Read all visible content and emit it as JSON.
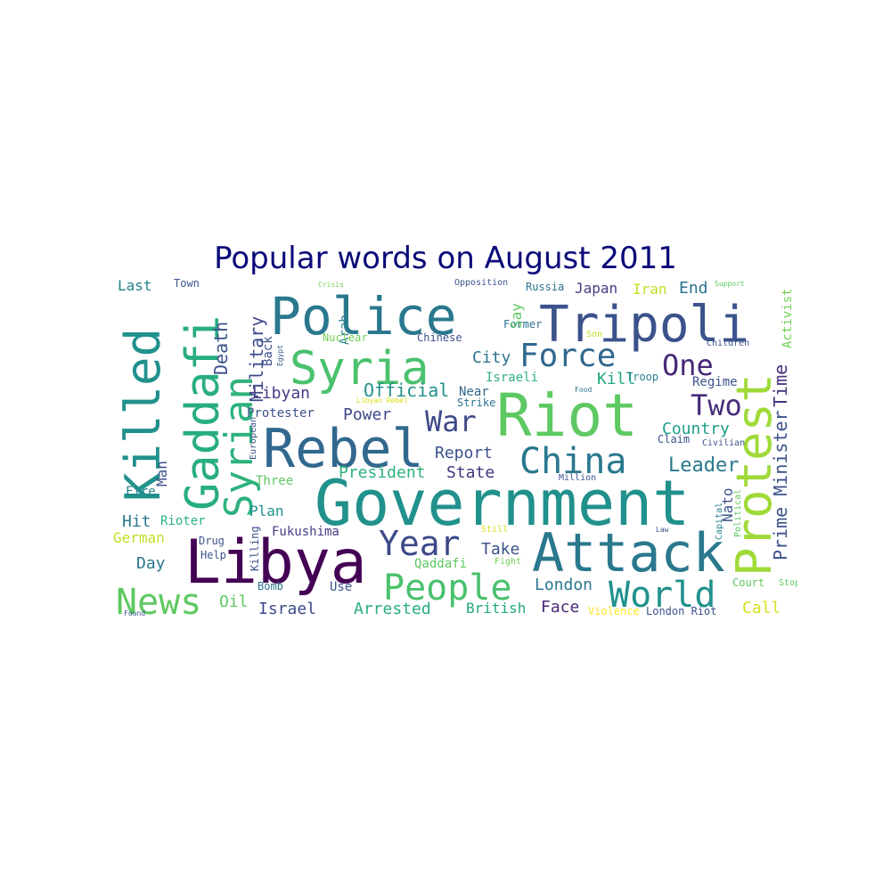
{
  "title": "Popular words on August 2011",
  "colors": {
    "title": "#0a0a7a"
  },
  "words": [
    {
      "text": "Government",
      "color": "#21918c"
    },
    {
      "text": "Libya",
      "color": "#440154"
    },
    {
      "text": "Attack",
      "color": "#2a788e"
    },
    {
      "text": "Riot",
      "color": "#5ec962"
    },
    {
      "text": "Police",
      "color": "#2a788e"
    },
    {
      "text": "Tripoli",
      "color": "#3b528b"
    },
    {
      "text": "Killed",
      "color": "#21918c"
    },
    {
      "text": "Gaddafi",
      "color": "#27ad81"
    },
    {
      "text": "Rebel",
      "color": "#31688e"
    },
    {
      "text": "Syria",
      "color": "#4ac16d"
    },
    {
      "text": "Protest",
      "color": "#a0da39"
    },
    {
      "text": "Syrian",
      "color": "#2db27d"
    },
    {
      "text": "News",
      "color": "#5ec962"
    },
    {
      "text": "People",
      "color": "#4ac16d"
    },
    {
      "text": "World",
      "color": "#21918c"
    },
    {
      "text": "China",
      "color": "#2a788e"
    },
    {
      "text": "Force",
      "color": "#31688e"
    },
    {
      "text": "Year",
      "color": "#3e4989"
    },
    {
      "text": "One",
      "color": "#482878"
    },
    {
      "text": "Two",
      "color": "#472d7b"
    },
    {
      "text": "War",
      "color": "#3e4989"
    },
    {
      "text": "Leader",
      "color": "#2a788e"
    },
    {
      "text": "Prime Minister",
      "color": "#3b528b"
    },
    {
      "text": "Time",
      "color": "#46327e"
    },
    {
      "text": "Death",
      "color": "#3b528b"
    },
    {
      "text": "Military",
      "color": "#3e4989"
    },
    {
      "text": "Official",
      "color": "#21918c"
    },
    {
      "text": "Libyan",
      "color": "#433e85"
    },
    {
      "text": "Country",
      "color": "#1f9e89"
    },
    {
      "text": "City",
      "color": "#2c728e"
    },
    {
      "text": "Kill",
      "color": "#22a884"
    },
    {
      "text": "Regime",
      "color": "#3b528b"
    },
    {
      "text": "End",
      "color": "#2c728e"
    },
    {
      "text": "Report",
      "color": "#3b528b"
    },
    {
      "text": "President",
      "color": "#2db27d"
    },
    {
      "text": "State",
      "color": "#46327e"
    },
    {
      "text": "Power",
      "color": "#3e4989"
    },
    {
      "text": "Protester",
      "color": "#3b528b"
    },
    {
      "text": "Near",
      "color": "#31688e"
    },
    {
      "text": "Israeli",
      "color": "#2db27d"
    },
    {
      "text": "Strike",
      "color": "#2c728e"
    },
    {
      "text": "Troop",
      "color": "#26828e"
    },
    {
      "text": "Arrested",
      "color": "#27ad81"
    },
    {
      "text": "British",
      "color": "#22a884"
    },
    {
      "text": "Face",
      "color": "#482878"
    },
    {
      "text": "Israel",
      "color": "#3e4989"
    },
    {
      "text": "London",
      "color": "#2a788e"
    },
    {
      "text": "Take",
      "color": "#3b528b"
    },
    {
      "text": "Qaddafi",
      "color": "#5ec962"
    },
    {
      "text": "Fukushima",
      "color": "#433e85"
    },
    {
      "text": "Plan",
      "color": "#21918c"
    },
    {
      "text": "Three",
      "color": "#5ec962"
    },
    {
      "text": "Hit",
      "color": "#2a788e"
    },
    {
      "text": "German",
      "color": "#c2df23"
    },
    {
      "text": "Day",
      "color": "#2a788e"
    },
    {
      "text": "Oil",
      "color": "#5ec962"
    },
    {
      "text": "Use",
      "color": "#3b528b"
    },
    {
      "text": "Call",
      "color": "#d8e219"
    },
    {
      "text": "Nato",
      "color": "#3b528b"
    },
    {
      "text": "Man",
      "color": "#3b528b"
    },
    {
      "text": "Fire",
      "color": "#26828e"
    },
    {
      "text": "Rioter",
      "color": "#2db27d"
    },
    {
      "text": "Drug",
      "color": "#3b528b"
    },
    {
      "text": "Help",
      "color": "#3b528b"
    },
    {
      "text": "Bomb",
      "color": "#2c728e"
    },
    {
      "text": "Killing",
      "color": "#3b528b"
    },
    {
      "text": "Last",
      "color": "#26828e"
    },
    {
      "text": "Town",
      "color": "#3b528b"
    },
    {
      "text": "Arab",
      "color": "#26828e"
    },
    {
      "text": "Back",
      "color": "#3b528b"
    },
    {
      "text": "Egypt",
      "color": "#3b528b"
    },
    {
      "text": "European",
      "color": "#3b528b"
    },
    {
      "text": "Nuclear",
      "color": "#73d056"
    },
    {
      "text": "Chinese",
      "color": "#3b528b"
    },
    {
      "text": "Opposition",
      "color": "#3b528b"
    },
    {
      "text": "Russia",
      "color": "#2c728e"
    },
    {
      "text": "Japan",
      "color": "#433e85"
    },
    {
      "text": "Iran",
      "color": "#c2df23"
    },
    {
      "text": "Former",
      "color": "#2c728e"
    },
    {
      "text": "Son",
      "color": "#c2df23"
    },
    {
      "text": "Children",
      "color": "#3b528b"
    },
    {
      "text": "Activist",
      "color": "#73d056"
    },
    {
      "text": "Support",
      "color": "#5ec962"
    },
    {
      "text": "Crisis",
      "color": "#73d056"
    },
    {
      "text": "Say",
      "color": "#5ec962"
    },
    {
      "text": "Food",
      "color": "#2c728e"
    },
    {
      "text": "Libyan Rebel",
      "color": "#d8e219"
    },
    {
      "text": "Claim",
      "color": "#3b528b"
    },
    {
      "text": "Civilian",
      "color": "#3b528b"
    },
    {
      "text": "Million",
      "color": "#3b528b"
    },
    {
      "text": "Capital",
      "color": "#26828e"
    },
    {
      "text": "Political",
      "color": "#5ec962"
    },
    {
      "text": "Still",
      "color": "#d8e219"
    },
    {
      "text": "Law",
      "color": "#3b528b"
    },
    {
      "text": "Fight",
      "color": "#73d056"
    },
    {
      "text": "Court",
      "color": "#5ec962"
    },
    {
      "text": "Stop",
      "color": "#5ec962"
    },
    {
      "text": "Violence",
      "color": "#fde725"
    },
    {
      "text": "London Riot",
      "color": "#3b528b"
    },
    {
      "text": "Found",
      "color": "#3b528b"
    }
  ]
}
